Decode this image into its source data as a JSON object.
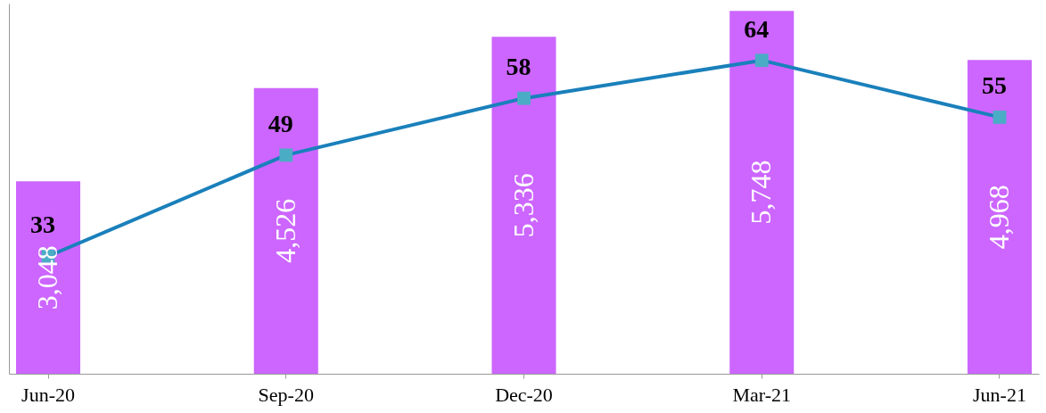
{
  "chart_data": {
    "type": "bar",
    "categories": [
      "Jun-20",
      "Sep-20",
      "Dec-20",
      "Mar-21",
      "Jun-21"
    ],
    "series": [
      {
        "color": "#cc66ff",
        "values": [
          3048,
          4526,
          5336,
          5748,
          4968
        ],
        "value_labels": [
          "3,048",
          "4,526",
          "5,336",
          "5,748",
          "4,968"
        ]
      },
      {
        "type": "line",
        "axis": "y2",
        "color": "#1a80bb",
        "marker": "square",
        "values": [
          33,
          49,
          58,
          64,
          55
        ]
      }
    ],
    "data_labels": true,
    "grid": false,
    "tick_labels": "x"
  }
}
